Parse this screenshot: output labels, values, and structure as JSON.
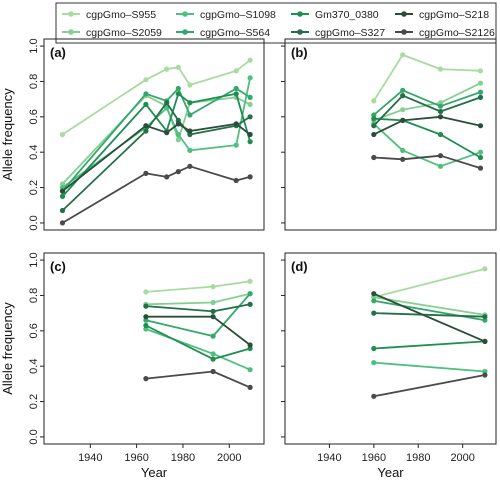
{
  "legend": [
    {
      "name": "cgpGmo–S955",
      "color": "#a8dba0"
    },
    {
      "name": "cgpGmo–S2059",
      "color": "#86cf90"
    },
    {
      "name": "cgpGmo–S1098",
      "color": "#4fbf7f"
    },
    {
      "name": "cgpGmo–S564",
      "color": "#34a86b"
    },
    {
      "name": "Gm370_0380",
      "color": "#1f8e53"
    },
    {
      "name": "cgpGmo–S327",
      "color": "#237048"
    },
    {
      "name": "cgpGmo–S218",
      "color": "#2b4d3b"
    },
    {
      "name": "cgpGmo–S2126",
      "color": "#4a4a4a"
    }
  ],
  "chart_data": [
    {
      "type": "line",
      "panel_label": "(a)",
      "ylabel": "Allele frequency",
      "xlabel": "",
      "xlim": [
        1920,
        2015
      ],
      "ylim": [
        -0.04,
        1.04
      ],
      "yticks": [
        "0.0",
        "0.2",
        "0.4",
        "0.6",
        "0.8",
        "1.0"
      ],
      "xticks": [],
      "series": [
        {
          "name": "cgpGmo–S955",
          "x": [
            1928,
            1964,
            1973,
            1978,
            1983,
            2003,
            2009
          ],
          "y": [
            0.5,
            0.81,
            0.87,
            0.88,
            0.78,
            0.86,
            0.92
          ]
        },
        {
          "name": "cgpGmo–S2059",
          "x": [
            1928,
            1964,
            1973,
            1978,
            1983,
            2003,
            2009
          ],
          "y": [
            0.22,
            0.72,
            0.66,
            0.47,
            0.68,
            0.71,
            0.67
          ]
        },
        {
          "name": "cgpGmo–S1098",
          "x": [
            1928,
            1964,
            1973,
            1978,
            1983,
            2003,
            2009
          ],
          "y": [
            0.2,
            0.54,
            0.65,
            0.5,
            0.41,
            0.44,
            0.82
          ]
        },
        {
          "name": "cgpGmo–S564",
          "x": [
            1928,
            1964,
            1973,
            1978,
            1983,
            2003,
            2009
          ],
          "y": [
            0.18,
            0.73,
            0.69,
            0.76,
            0.61,
            0.76,
            0.71
          ]
        },
        {
          "name": "Gm370_0380",
          "x": [
            1928,
            1964,
            1973,
            1978,
            1983,
            2003,
            2009
          ],
          "y": [
            0.15,
            0.67,
            0.52,
            0.73,
            0.68,
            0.73,
            0.46
          ]
        },
        {
          "name": "cgpGmo–S327",
          "x": [
            1928,
            1964,
            1973,
            1978,
            1983,
            2003,
            2009
          ],
          "y": [
            0.07,
            0.52,
            0.68,
            0.58,
            0.5,
            0.55,
            0.6
          ]
        },
        {
          "name": "cgpGmo–S218",
          "x": [
            1928,
            1964,
            1973,
            1978,
            1983,
            2003,
            2009
          ],
          "y": [
            0.18,
            0.55,
            0.51,
            0.56,
            0.52,
            0.56,
            0.5
          ]
        },
        {
          "name": "cgpGmo–S2126",
          "x": [
            1928,
            1964,
            1973,
            1978,
            1983,
            2003,
            2009
          ],
          "y": [
            0.0,
            0.28,
            0.26,
            0.29,
            0.32,
            0.24,
            0.26
          ]
        }
      ]
    },
    {
      "type": "line",
      "panel_label": "(b)",
      "xlim": [
        1920,
        2015
      ],
      "ylim": [
        -0.04,
        1.04
      ],
      "yticks": [],
      "xticks": [],
      "series": [
        {
          "name": "cgpGmo–S955",
          "x": [
            1960,
            1973,
            1990,
            2008
          ],
          "y": [
            0.69,
            0.95,
            0.87,
            0.86
          ]
        },
        {
          "name": "cgpGmo–S2059",
          "x": [
            1960,
            1973,
            1990,
            2008
          ],
          "y": [
            0.58,
            0.64,
            0.68,
            0.79
          ]
        },
        {
          "name": "cgpGmo–S1098",
          "x": [
            1960,
            1973,
            1990,
            2008
          ],
          "y": [
            0.56,
            0.41,
            0.32,
            0.4
          ]
        },
        {
          "name": "cgpGmo–S564",
          "x": [
            1960,
            1973,
            1990,
            2008
          ],
          "y": [
            0.61,
            0.75,
            0.66,
            0.74
          ]
        },
        {
          "name": "Gm370_0380",
          "x": [
            1960,
            1973,
            1990,
            2008
          ],
          "y": [
            0.59,
            0.58,
            0.5,
            0.37
          ]
        },
        {
          "name": "cgpGmo–S327",
          "x": [
            1960,
            1973,
            1990,
            2008
          ],
          "y": [
            0.55,
            0.72,
            0.63,
            0.71
          ]
        },
        {
          "name": "cgpGmo–S218",
          "x": [
            1960,
            1973,
            1990,
            2008
          ],
          "y": [
            0.5,
            0.58,
            0.6,
            0.55
          ]
        },
        {
          "name": "cgpGmo–S2126",
          "x": [
            1960,
            1973,
            1990,
            2008
          ],
          "y": [
            0.37,
            0.36,
            0.38,
            0.31
          ]
        }
      ]
    },
    {
      "type": "line",
      "panel_label": "(c)",
      "ylabel": "Allele frequency",
      "xlabel": "Year",
      "xlim": [
        1920,
        2015
      ],
      "ylim": [
        -0.04,
        1.04
      ],
      "yticks": [
        "0.0",
        "0.2",
        "0.4",
        "0.6",
        "0.8",
        "1.0"
      ],
      "xticks": [
        "1940",
        "1960",
        "1980",
        "2000"
      ],
      "series": [
        {
          "name": "cgpGmo–S955",
          "x": [
            1964,
            1993,
            2009
          ],
          "y": [
            0.82,
            0.85,
            0.88
          ]
        },
        {
          "name": "cgpGmo–S2059",
          "x": [
            1964,
            1993,
            2009
          ],
          "y": [
            0.75,
            0.76,
            0.81
          ]
        },
        {
          "name": "cgpGmo–S1098",
          "x": [
            1964,
            1993,
            2009
          ],
          "y": [
            0.61,
            0.47,
            0.38
          ]
        },
        {
          "name": "cgpGmo–S564",
          "x": [
            1964,
            1993,
            2009
          ],
          "y": [
            0.66,
            0.57,
            0.81
          ]
        },
        {
          "name": "Gm370_0380",
          "x": [
            1964,
            1993,
            2009
          ],
          "y": [
            0.63,
            0.44,
            0.5
          ]
        },
        {
          "name": "cgpGmo–S327",
          "x": [
            1964,
            1993,
            2009
          ],
          "y": [
            0.74,
            0.71,
            0.75
          ]
        },
        {
          "name": "cgpGmo–S218",
          "x": [
            1964,
            1993,
            2009
          ],
          "y": [
            0.68,
            0.68,
            0.52
          ]
        },
        {
          "name": "cgpGmo–S2126",
          "x": [
            1964,
            1993,
            2009
          ],
          "y": [
            0.33,
            0.37,
            0.28
          ]
        }
      ]
    },
    {
      "type": "line",
      "panel_label": "(d)",
      "xlabel": "Year",
      "xlim": [
        1920,
        2015
      ],
      "ylim": [
        -0.04,
        1.04
      ],
      "yticks": [],
      "xticks": [
        "1940",
        "1960",
        "1980",
        "2000"
      ],
      "series": [
        {
          "name": "cgpGmo–S955",
          "x": [
            1960,
            2010
          ],
          "y": [
            0.79,
            0.95
          ]
        },
        {
          "name": "cgpGmo–S2059",
          "x": [
            1960,
            2010
          ],
          "y": [
            0.79,
            0.69
          ]
        },
        {
          "name": "cgpGmo–S1098",
          "x": [
            1960,
            2010
          ],
          "y": [
            0.42,
            0.37
          ]
        },
        {
          "name": "cgpGmo–S564",
          "x": [
            1960,
            2010
          ],
          "y": [
            0.77,
            0.66
          ]
        },
        {
          "name": "Gm370_0380",
          "x": [
            1960,
            2010
          ],
          "y": [
            0.5,
            0.54
          ]
        },
        {
          "name": "cgpGmo–S327",
          "x": [
            1960,
            2010
          ],
          "y": [
            0.7,
            0.68
          ]
        },
        {
          "name": "cgpGmo–S218",
          "x": [
            1960,
            2010
          ],
          "y": [
            0.81,
            0.54
          ]
        },
        {
          "name": "cgpGmo–S2126",
          "x": [
            1960,
            2010
          ],
          "y": [
            0.23,
            0.35
          ]
        }
      ]
    }
  ]
}
